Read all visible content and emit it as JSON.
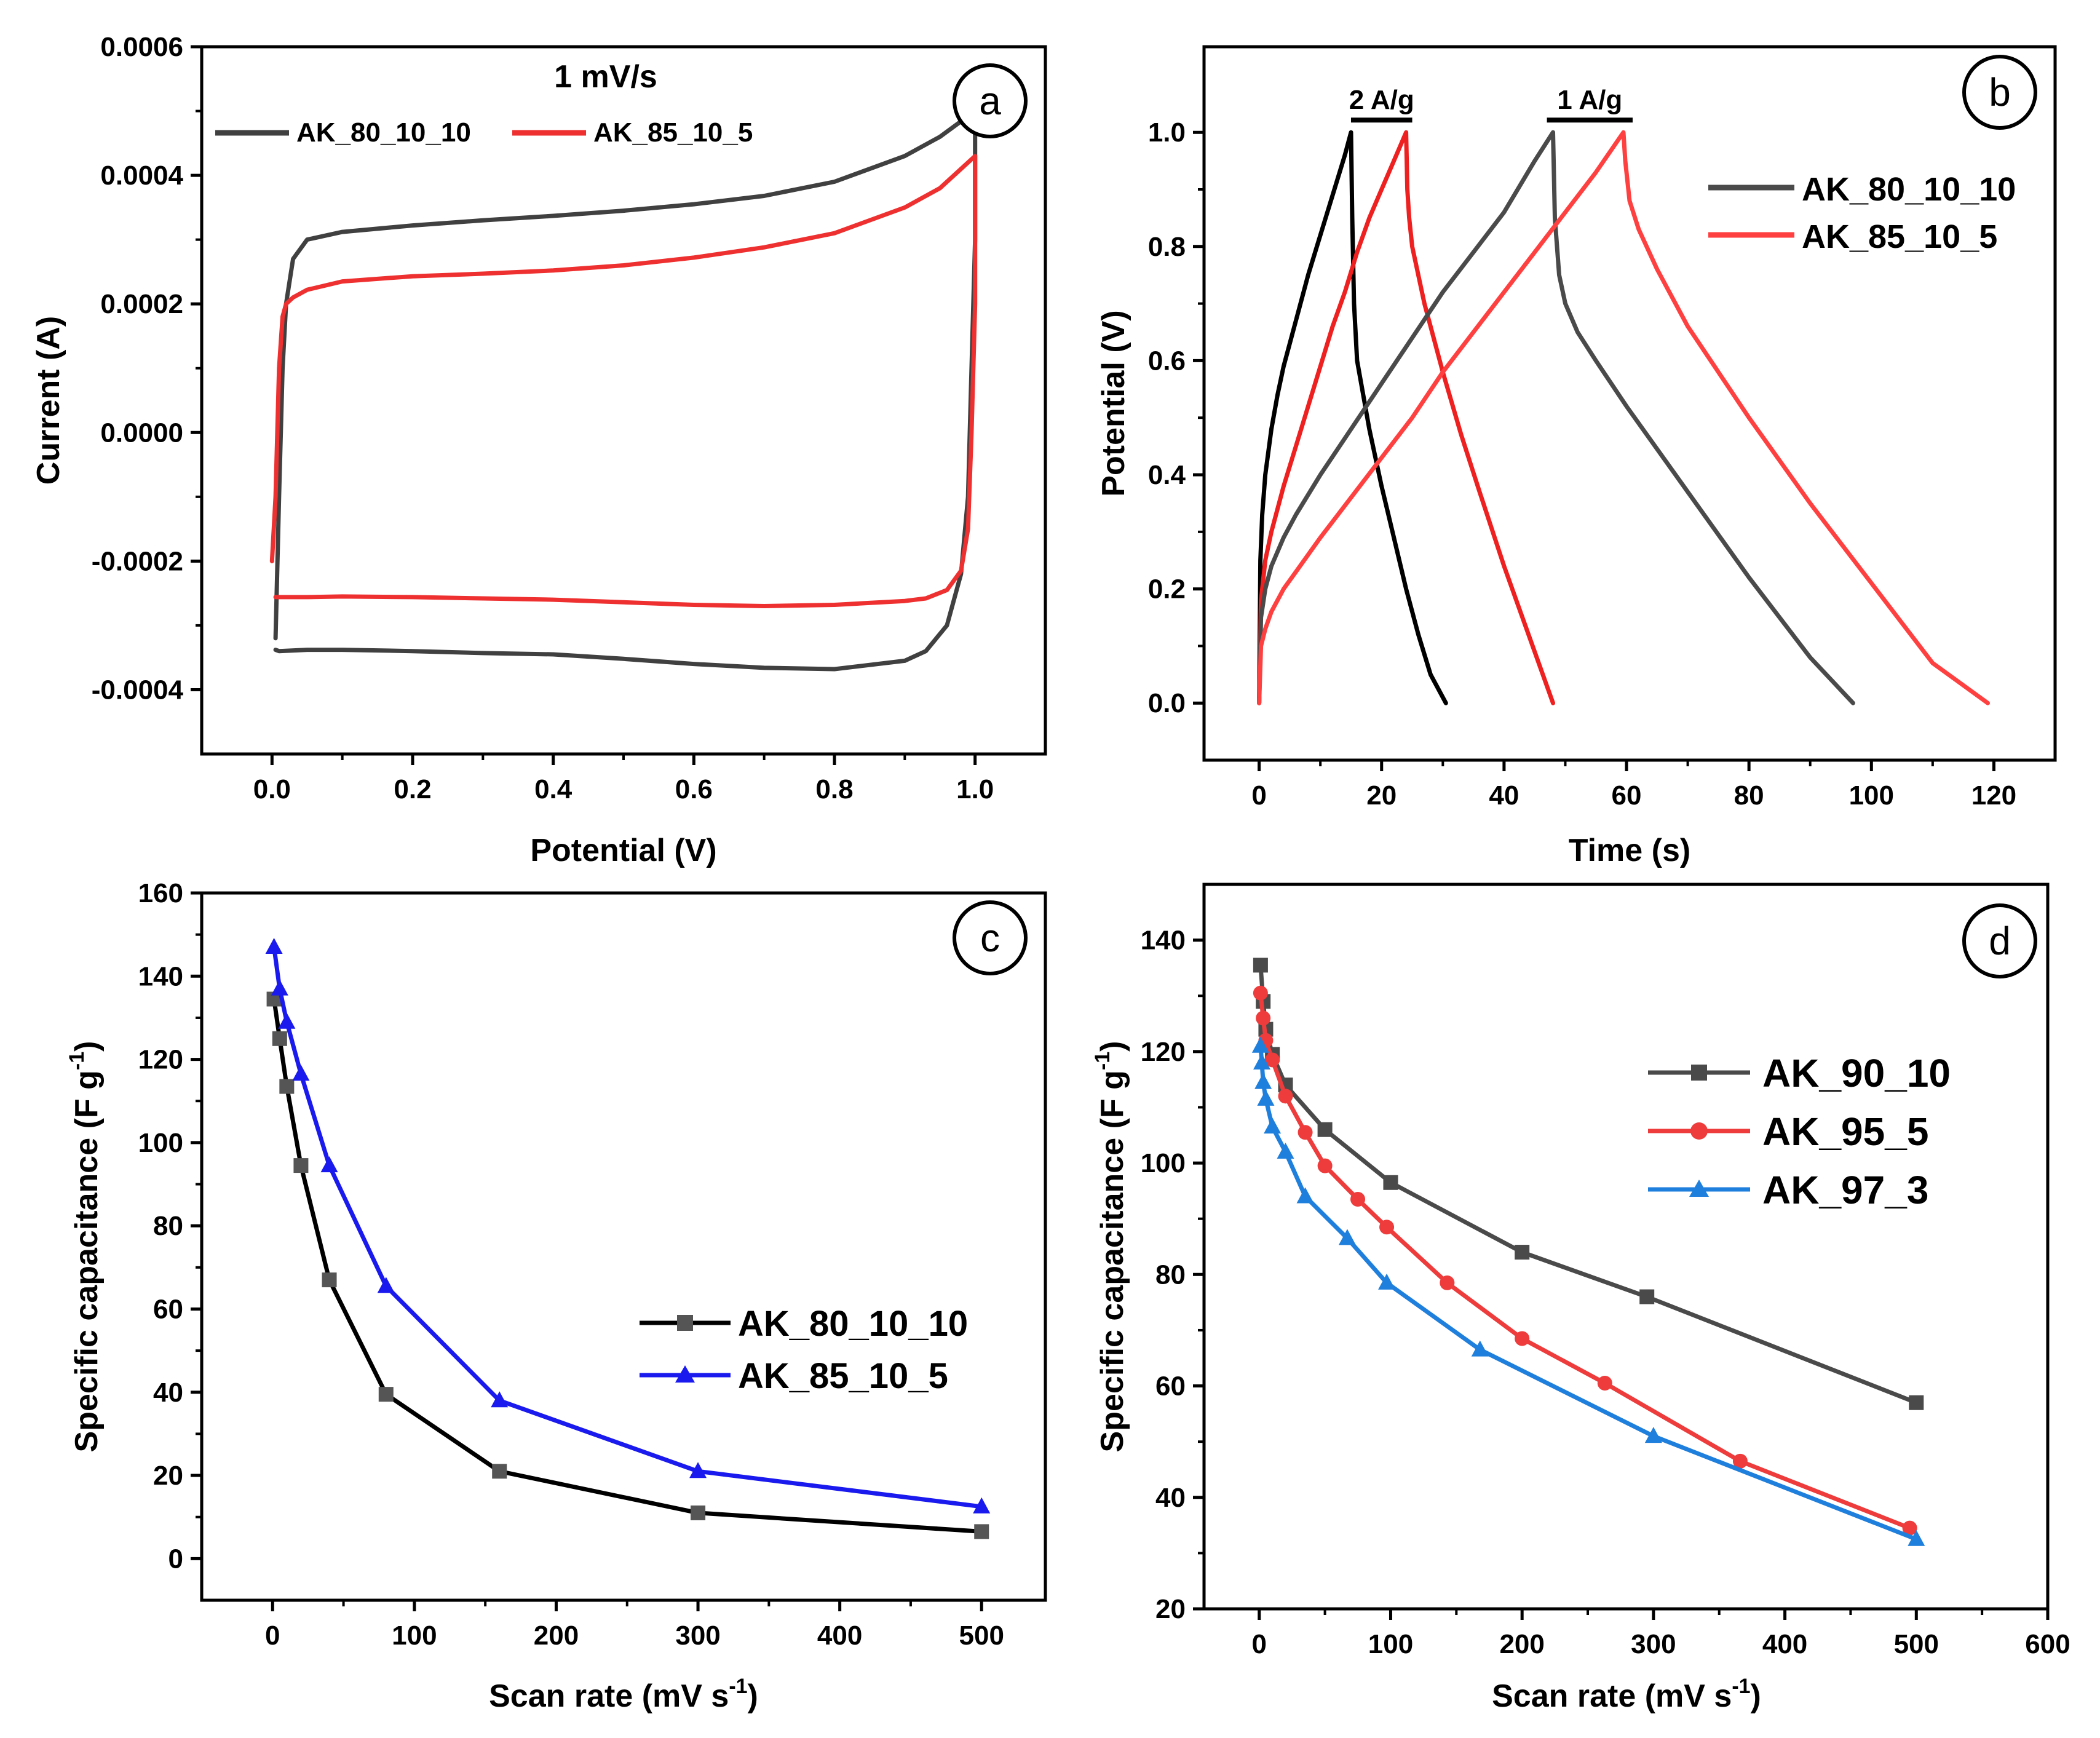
{
  "panels": {
    "a": {
      "badge": "a"
    },
    "b": {
      "badge": "b"
    },
    "c": {
      "badge": "c"
    },
    "d": {
      "badge": "d"
    }
  },
  "chart_data": [
    {
      "id": "a",
      "type": "line",
      "title": "1 mV/s",
      "xlabel": "Potential (V)",
      "ylabel": "Current (A)",
      "xlim": [
        -0.1,
        1.1
      ],
      "ylim": [
        -0.0005,
        0.0006
      ],
      "xticks": [
        0.0,
        0.2,
        0.4,
        0.6,
        0.8,
        1.0
      ],
      "xtick_labels": [
        "0.0",
        "0.2",
        "0.4",
        "0.6",
        "0.8",
        "1.0"
      ],
      "yticks": [
        0.0006,
        0.0004,
        0.0002,
        0.0,
        -0.0002,
        -0.0004
      ],
      "ytick_labels": [
        "0.0006",
        "0.0004",
        "0.0002",
        "0.0000",
        "-0.0002",
        "-0.0004"
      ],
      "legend_position": "top-left",
      "series": [
        {
          "name": "AK_80_10_10",
          "color": "#404040",
          "x": [
            0.005,
            0.01,
            0.015,
            0.02,
            0.03,
            0.05,
            0.1,
            0.2,
            0.3,
            0.4,
            0.5,
            0.6,
            0.7,
            0.8,
            0.9,
            0.95,
            1.0,
            1.0,
            0.995,
            0.99,
            0.98,
            0.96,
            0.93,
            0.9,
            0.8,
            0.7,
            0.6,
            0.5,
            0.4,
            0.3,
            0.2,
            0.1,
            0.05,
            0.01,
            0.005
          ],
          "y": [
            -0.00032,
            -0.0001,
            0.0001,
            0.0002,
            0.00027,
            0.0003,
            0.000312,
            0.000322,
            0.00033,
            0.000337,
            0.000345,
            0.000355,
            0.000368,
            0.00039,
            0.00043,
            0.00046,
            0.0005,
            0.0003,
            0.0001,
            -0.0001,
            -0.00022,
            -0.0003,
            -0.00034,
            -0.000355,
            -0.000368,
            -0.000366,
            -0.00036,
            -0.000352,
            -0.000345,
            -0.000343,
            -0.00034,
            -0.000338,
            -0.000338,
            -0.00034,
            -0.000338
          ]
        },
        {
          "name": "AK_85_10_5",
          "color": "#ee3030",
          "x": [
            0.0,
            0.005,
            0.01,
            0.015,
            0.02,
            0.03,
            0.05,
            0.1,
            0.2,
            0.3,
            0.4,
            0.5,
            0.6,
            0.7,
            0.8,
            0.9,
            0.95,
            1.0,
            1.0,
            0.995,
            0.99,
            0.98,
            0.96,
            0.93,
            0.9,
            0.8,
            0.7,
            0.6,
            0.5,
            0.4,
            0.3,
            0.2,
            0.1,
            0.05,
            0.01,
            0.005
          ],
          "y": [
            -0.0002,
            -0.0001,
            0.0001,
            0.00018,
            0.0002,
            0.00021,
            0.000222,
            0.000235,
            0.000243,
            0.000247,
            0.000252,
            0.00026,
            0.000272,
            0.000288,
            0.00031,
            0.00035,
            0.00038,
            0.00043,
            0.0002,
            0.0,
            -0.00015,
            -0.000215,
            -0.000245,
            -0.000258,
            -0.000262,
            -0.000268,
            -0.00027,
            -0.000268,
            -0.000264,
            -0.00026,
            -0.000258,
            -0.000256,
            -0.000255,
            -0.000256,
            -0.000256,
            -0.000256
          ]
        }
      ]
    },
    {
      "id": "b",
      "type": "line",
      "xlabel": "Time (s)",
      "ylabel": "Potential (V)",
      "xlim": [
        -9,
        130
      ],
      "ylim": [
        -0.1,
        1.15
      ],
      "xticks": [
        0,
        20,
        40,
        60,
        80,
        100,
        120
      ],
      "xtick_labels": [
        "0",
        "20",
        "40",
        "60",
        "80",
        "100",
        "120"
      ],
      "yticks": [
        0.0,
        0.2,
        0.4,
        0.6,
        0.8,
        1.0
      ],
      "ytick_labels": [
        "0.0",
        "0.2",
        "0.4",
        "0.6",
        "0.8",
        "1.0"
      ],
      "legend_position": "top-right",
      "annotations": [
        {
          "text": "2 A/g",
          "x_start": 15,
          "x_end": 25,
          "y": 1.0
        },
        {
          "text": "1 A/g",
          "x_start": 47,
          "x_end": 61,
          "y": 1.0
        }
      ],
      "series": [
        {
          "name": "",
          "color": "#000000",
          "x": [
            0,
            0.2,
            0.5,
            1,
            2,
            3,
            4,
            6,
            8,
            10,
            12,
            14,
            15,
            15.2,
            15.5,
            16,
            18,
            20,
            22,
            24,
            26,
            28,
            30.5
          ],
          "y": [
            0.0,
            0.25,
            0.33,
            0.4,
            0.48,
            0.54,
            0.59,
            0.67,
            0.75,
            0.82,
            0.89,
            0.96,
            1.0,
            0.85,
            0.7,
            0.6,
            0.48,
            0.38,
            0.29,
            0.2,
            0.12,
            0.05,
            0.0
          ]
        },
        {
          "name": "",
          "color": "#ee2020",
          "x": [
            0,
            0.3,
            1,
            2,
            4,
            6,
            8,
            10,
            12,
            14,
            16,
            18,
            20,
            22,
            24,
            24.2,
            24.5,
            25,
            27,
            30,
            33,
            36,
            40,
            44,
            48
          ],
          "y": [
            0.0,
            0.18,
            0.25,
            0.3,
            0.38,
            0.45,
            0.52,
            0.59,
            0.66,
            0.72,
            0.79,
            0.85,
            0.9,
            0.95,
            1.0,
            0.9,
            0.85,
            0.8,
            0.7,
            0.58,
            0.47,
            0.37,
            0.24,
            0.12,
            0.0
          ]
        },
        {
          "name": "AK_80_10_10",
          "color": "#4a4a4a",
          "x": [
            0,
            0.3,
            1,
            2,
            4,
            6,
            10,
            15,
            20,
            25,
            30,
            35,
            40,
            45,
            48,
            48.3,
            49,
            50,
            52,
            55,
            60,
            70,
            80,
            90,
            97
          ],
          "y": [
            0.0,
            0.15,
            0.2,
            0.24,
            0.29,
            0.33,
            0.4,
            0.48,
            0.56,
            0.64,
            0.72,
            0.79,
            0.86,
            0.95,
            1.0,
            0.85,
            0.75,
            0.7,
            0.65,
            0.6,
            0.52,
            0.37,
            0.22,
            0.08,
            0.0
          ]
        },
        {
          "name": "AK_85_10_5",
          "color": "#ff4040",
          "x": [
            0,
            0.3,
            1,
            2,
            4,
            6,
            10,
            15,
            20,
            25,
            30,
            35,
            40,
            45,
            50,
            55,
            59.5,
            59.8,
            60.5,
            62,
            65,
            70,
            80,
            90,
            100,
            110,
            119
          ],
          "y": [
            0.0,
            0.1,
            0.13,
            0.16,
            0.2,
            0.23,
            0.29,
            0.36,
            0.43,
            0.5,
            0.58,
            0.65,
            0.72,
            0.79,
            0.86,
            0.93,
            1.0,
            0.95,
            0.88,
            0.83,
            0.76,
            0.66,
            0.5,
            0.35,
            0.21,
            0.07,
            0.0
          ]
        }
      ]
    },
    {
      "id": "c",
      "type": "line",
      "xlabel": "Scan rate (mV s",
      "xlabel_sup": "-1",
      "xlabel_end": ")",
      "ylabel": "Specific capacitance (F g",
      "ylabel_sup": "-1",
      "ylabel_end": ")",
      "xlim": [
        -50,
        545
      ],
      "ylim": [
        -10,
        160
      ],
      "xticks": [
        0,
        100,
        200,
        300,
        400,
        500
      ],
      "xtick_labels": [
        "0",
        "100",
        "200",
        "300",
        "400",
        "500"
      ],
      "yticks": [
        0,
        20,
        40,
        60,
        80,
        100,
        120,
        140,
        160
      ],
      "ytick_labels": [
        "0",
        "20",
        "40",
        "60",
        "80",
        "100",
        "120",
        "140",
        "160"
      ],
      "legend_position": "center-right",
      "series": [
        {
          "name": "AK_80_10_10",
          "color": "#000000",
          "marker": "square",
          "marker_color": "#555555",
          "x": [
            1,
            5,
            10,
            20,
            40,
            80,
            160,
            300,
            500
          ],
          "y": [
            134.5,
            125,
            113.5,
            94.5,
            67,
            39.5,
            21,
            11,
            6.5
          ]
        },
        {
          "name": "AK_85_10_5",
          "color": "#1a1aee",
          "marker": "triangle",
          "marker_color": "#1a1aee",
          "x": [
            1,
            5,
            10,
            20,
            40,
            80,
            160,
            300,
            500
          ],
          "y": [
            147,
            137,
            129,
            116.5,
            94.5,
            65.5,
            38,
            21,
            12.5
          ]
        }
      ]
    },
    {
      "id": "d",
      "type": "line",
      "xlabel": "Scan rate (mV s",
      "xlabel_sup": "-1",
      "xlabel_end": ")",
      "ylabel": "Specific capacitance (F g",
      "ylabel_sup": "-1",
      "ylabel_end": ")",
      "xlim": [
        -42,
        600
      ],
      "ylim": [
        20,
        150
      ],
      "xticks": [
        0,
        100,
        200,
        300,
        400,
        500,
        600
      ],
      "xtick_labels": [
        "0",
        "100",
        "200",
        "300",
        "400",
        "500",
        "600"
      ],
      "yticks": [
        20,
        40,
        60,
        80,
        100,
        120,
        140
      ],
      "ytick_labels": [
        "20",
        "40",
        "60",
        "80",
        "100",
        "120",
        "140"
      ],
      "legend_position": "top-right",
      "series": [
        {
          "name": "AK_90_10",
          "color": "#4a4a4a",
          "marker": "square",
          "marker_color": "#4a4a4a",
          "x": [
            1,
            3,
            5,
            10,
            20,
            50,
            100,
            200,
            295,
            500
          ],
          "y": [
            135.5,
            129,
            124,
            119.5,
            114,
            106,
            96.5,
            84,
            76,
            57
          ]
        },
        {
          "name": "AK_95_5",
          "color": "#ee3b3b",
          "marker": "circle",
          "marker_color": "#ee3b3b",
          "x": [
            1,
            3,
            5,
            10,
            20,
            35,
            50,
            75,
            97,
            143,
            200,
            263,
            366,
            495
          ],
          "y": [
            130.5,
            126,
            122,
            118.5,
            112,
            105.5,
            99.5,
            93.5,
            88.5,
            78.5,
            68.5,
            60.5,
            46.5,
            34.5
          ]
        },
        {
          "name": "AK_97_3",
          "color": "#1f7fdc",
          "marker": "triangle",
          "marker_color": "#1f7fdc",
          "x": [
            1,
            2,
            3,
            5,
            10,
            20,
            35,
            67,
            97,
            168,
            300,
            500
          ],
          "y": [
            121,
            118,
            114.5,
            111.5,
            106.5,
            102,
            94,
            86.5,
            78.5,
            66.5,
            51,
            32.5
          ]
        }
      ]
    }
  ]
}
